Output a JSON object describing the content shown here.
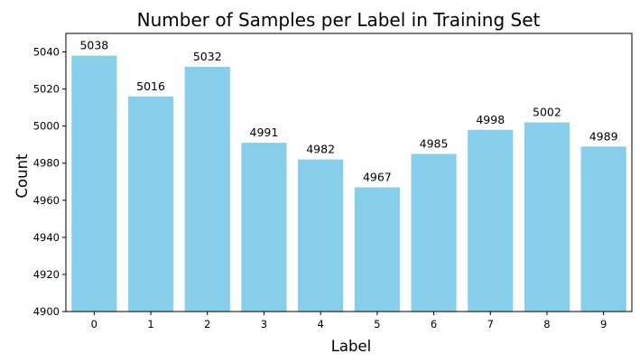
{
  "chart_data": {
    "type": "bar",
    "title": "Number of Samples per Label in Training Set",
    "xlabel": "Label",
    "ylabel": "Count",
    "categories": [
      "0",
      "1",
      "2",
      "3",
      "4",
      "5",
      "6",
      "7",
      "8",
      "9"
    ],
    "values": [
      5038,
      5016,
      5032,
      4991,
      4982,
      4967,
      4985,
      4998,
      5002,
      4989
    ],
    "ylim": [
      4900,
      5050
    ],
    "yticks": [
      4900,
      4920,
      4940,
      4960,
      4980,
      5000,
      5020,
      5040
    ],
    "bar_color": "#87CEEB",
    "grid": false,
    "legend": "none"
  }
}
